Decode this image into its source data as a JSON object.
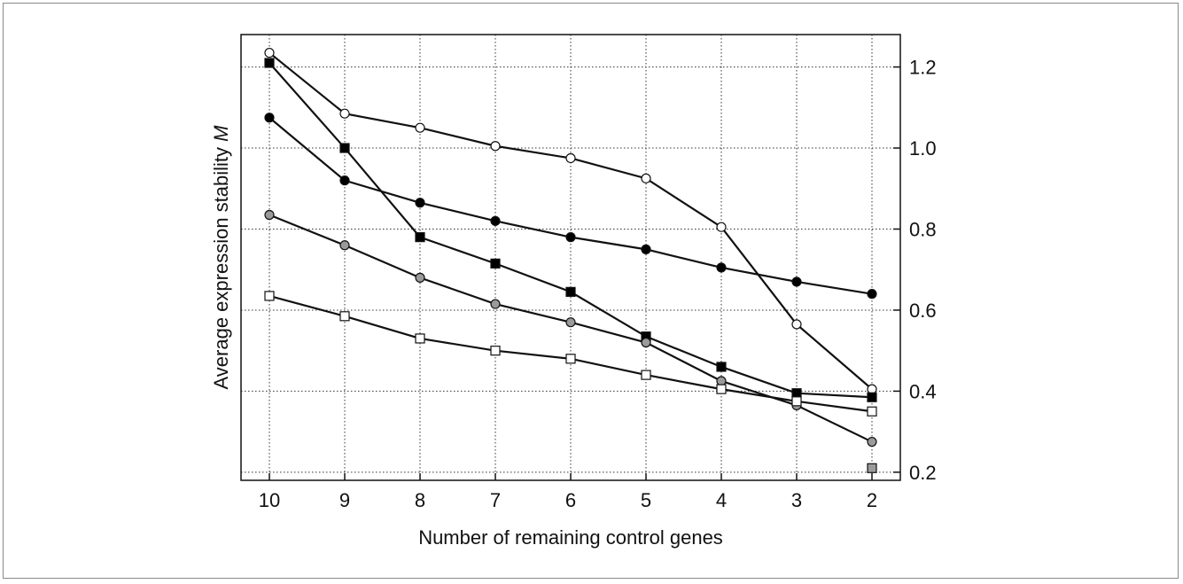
{
  "chart_data": {
    "type": "line",
    "xlabel": "Number of remaining control genes",
    "ylabel": "Average expression stability ",
    "ylabel_italic": "M",
    "x": [
      10,
      9,
      8,
      7,
      6,
      5,
      4,
      3,
      2
    ],
    "x_ticks": [
      "10",
      "9",
      "8",
      "7",
      "6",
      "5",
      "4",
      "3",
      "2"
    ],
    "y_ticks": [
      "0.2",
      "0.4",
      "0.6",
      "0.8",
      "1.0",
      "1.2"
    ],
    "y_tick_values": [
      0.2,
      0.4,
      0.6,
      0.8,
      1.0,
      1.2
    ],
    "ylim": [
      0.18,
      1.28
    ],
    "y_axis_side": "right",
    "grid": true,
    "series": [
      {
        "marker": "open-circle",
        "fill": "#ffffff",
        "values": [
          1.235,
          1.085,
          1.05,
          1.005,
          0.975,
          0.925,
          0.805,
          0.565,
          0.405
        ]
      },
      {
        "marker": "filled-square",
        "fill": "#000000",
        "values": [
          1.21,
          1.0,
          0.78,
          0.715,
          0.645,
          0.535,
          0.46,
          0.395,
          0.385
        ]
      },
      {
        "marker": "filled-circle",
        "fill": "#000000",
        "values": [
          1.075,
          0.92,
          0.865,
          0.82,
          0.78,
          0.75,
          0.705,
          0.67,
          0.64
        ]
      },
      {
        "marker": "gray-circle",
        "fill": "#9a9a9a",
        "values": [
          0.835,
          0.76,
          0.68,
          0.615,
          0.57,
          0.52,
          0.425,
          0.365,
          0.275
        ]
      },
      {
        "marker": "open-square",
        "fill": "#ffffff",
        "values": [
          0.635,
          0.585,
          0.53,
          0.5,
          0.48,
          0.44,
          0.405,
          0.375,
          0.35
        ]
      },
      {
        "marker": "gray-square",
        "fill": "#9a9a9a",
        "values": [
          null,
          null,
          null,
          null,
          null,
          null,
          null,
          null,
          0.21
        ]
      }
    ]
  }
}
